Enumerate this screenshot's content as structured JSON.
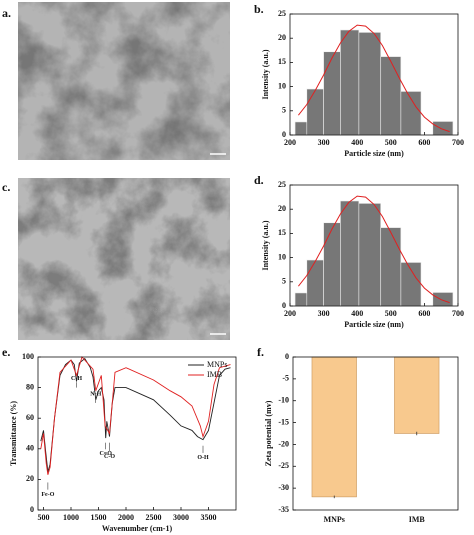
{
  "images": [
    {
      "label": "a."
    },
    {
      "label": "c."
    }
  ],
  "chart_data": [
    {
      "type": "histogram",
      "label": "b.",
      "xlabel": "Particle size (nm)",
      "ylabel": "Intensity (a.u.)",
      "bins": [
        215,
        250,
        300,
        350,
        405,
        470,
        530,
        590,
        625,
        685
      ],
      "counts": [
        2.7,
        9.5,
        17.2,
        21.7,
        21.2,
        16.2,
        9,
        0,
        2.8
      ],
      "color": "#777777",
      "fit": {
        "color": "#e02020",
        "x": [
          225,
          250,
          275,
          300,
          325,
          350,
          375,
          400,
          425,
          450,
          475,
          500,
          525,
          550,
          575,
          600,
          625,
          650,
          675
        ],
        "values": [
          4.1,
          6.3,
          9.2,
          12.4,
          15.9,
          19.0,
          21.4,
          22.7,
          22.5,
          21.0,
          18.5,
          15.2,
          11.8,
          8.6,
          5.8,
          3.7,
          2.3,
          1.3,
          0.7
        ]
      },
      "xlim": [
        200,
        700
      ],
      "xticks": [
        200,
        300,
        400,
        500,
        600,
        700
      ],
      "ylim": [
        0,
        25
      ],
      "yticks": [
        0,
        5,
        10,
        15,
        20,
        25
      ]
    },
    {
      "type": "histogram",
      "label": "d.",
      "xlabel": "Particle size (nm)",
      "ylabel": "Intensity (a.u.)",
      "bins": [
        215,
        250,
        300,
        350,
        405,
        470,
        530,
        590,
        625,
        685
      ],
      "counts": [
        2.7,
        9.5,
        17.2,
        21.7,
        21.2,
        16.2,
        9,
        0,
        2.8
      ],
      "color": "#777777",
      "fit": {
        "color": "#e02020",
        "x": [
          225,
          250,
          275,
          300,
          325,
          350,
          375,
          400,
          425,
          450,
          475,
          500,
          525,
          550,
          575,
          600,
          625,
          650,
          675
        ],
        "values": [
          4.1,
          6.3,
          9.2,
          12.4,
          15.9,
          19.0,
          21.4,
          22.7,
          22.5,
          21.0,
          18.5,
          15.2,
          11.8,
          8.6,
          5.8,
          3.7,
          2.3,
          1.3,
          0.7
        ]
      },
      "xlim": [
        200,
        700
      ],
      "xticks": [
        200,
        300,
        400,
        500,
        600,
        700
      ],
      "ylim": [
        0,
        25
      ],
      "yticks": [
        0,
        5,
        10,
        15,
        20,
        25
      ]
    },
    {
      "type": "line",
      "label": "e.",
      "xlabel": "Wavenumber (cm-1)",
      "ylabel": "Transmittance (%)",
      "legend": "upper right",
      "series": [
        {
          "name": "MNPs",
          "color": "#222222",
          "x": [
            450,
            500,
            540,
            580,
            620,
            700,
            800,
            900,
            1000,
            1060,
            1100,
            1150,
            1250,
            1350,
            1400,
            1450,
            1500,
            1550,
            1600,
            1630,
            1650,
            1700,
            1750,
            1800,
            2000,
            2500,
            2800,
            3000,
            3200,
            3300,
            3400,
            3500,
            3600,
            3700,
            3800,
            3900
          ],
          "values": [
            45,
            52,
            38,
            25,
            30,
            60,
            88,
            95,
            98,
            95,
            84,
            96,
            99,
            93,
            87,
            72,
            78,
            80,
            72,
            47,
            58,
            48,
            70,
            80,
            80,
            72,
            62,
            55,
            52,
            48,
            46,
            52,
            70,
            88,
            92,
            93
          ]
        },
        {
          "name": "IMB",
          "color": "#e02020",
          "x": [
            450,
            500,
            550,
            580,
            620,
            700,
            800,
            1000,
            1100,
            1200,
            1400,
            1450,
            1550,
            1620,
            1700,
            1800,
            2000,
            2500,
            2800,
            3000,
            3200,
            3350,
            3400,
            3500,
            3600,
            3700,
            3900
          ],
          "values": [
            40,
            50,
            30,
            23,
            28,
            60,
            90,
            98,
            88,
            100,
            92,
            78,
            88,
            55,
            50,
            90,
            93,
            85,
            78,
            74,
            68,
            55,
            48,
            58,
            82,
            93,
            95
          ]
        }
      ],
      "annotations": [
        "Fe-O",
        "C-H",
        "N-H",
        "C=O",
        "C-O",
        "O-H"
      ],
      "xlim": [
        400,
        4000
      ],
      "xticks": [
        500,
        1000,
        1500,
        2000,
        2500,
        3000,
        3500
      ],
      "ylim": [
        0,
        100
      ],
      "yticks": [
        0,
        20,
        40,
        60,
        80,
        100
      ]
    },
    {
      "type": "bar",
      "label": "f.",
      "ylabel": "Zeta potential (mv)",
      "categories": [
        "MNPs",
        "IMB"
      ],
      "values": [
        -32,
        -17.5
      ],
      "errors": [
        0.3,
        0.4
      ],
      "color": "#f8c98e",
      "ylim": [
        -35,
        0
      ],
      "yticks": [
        0,
        -5,
        -10,
        -15,
        -20,
        -25,
        -30,
        -35
      ]
    }
  ]
}
